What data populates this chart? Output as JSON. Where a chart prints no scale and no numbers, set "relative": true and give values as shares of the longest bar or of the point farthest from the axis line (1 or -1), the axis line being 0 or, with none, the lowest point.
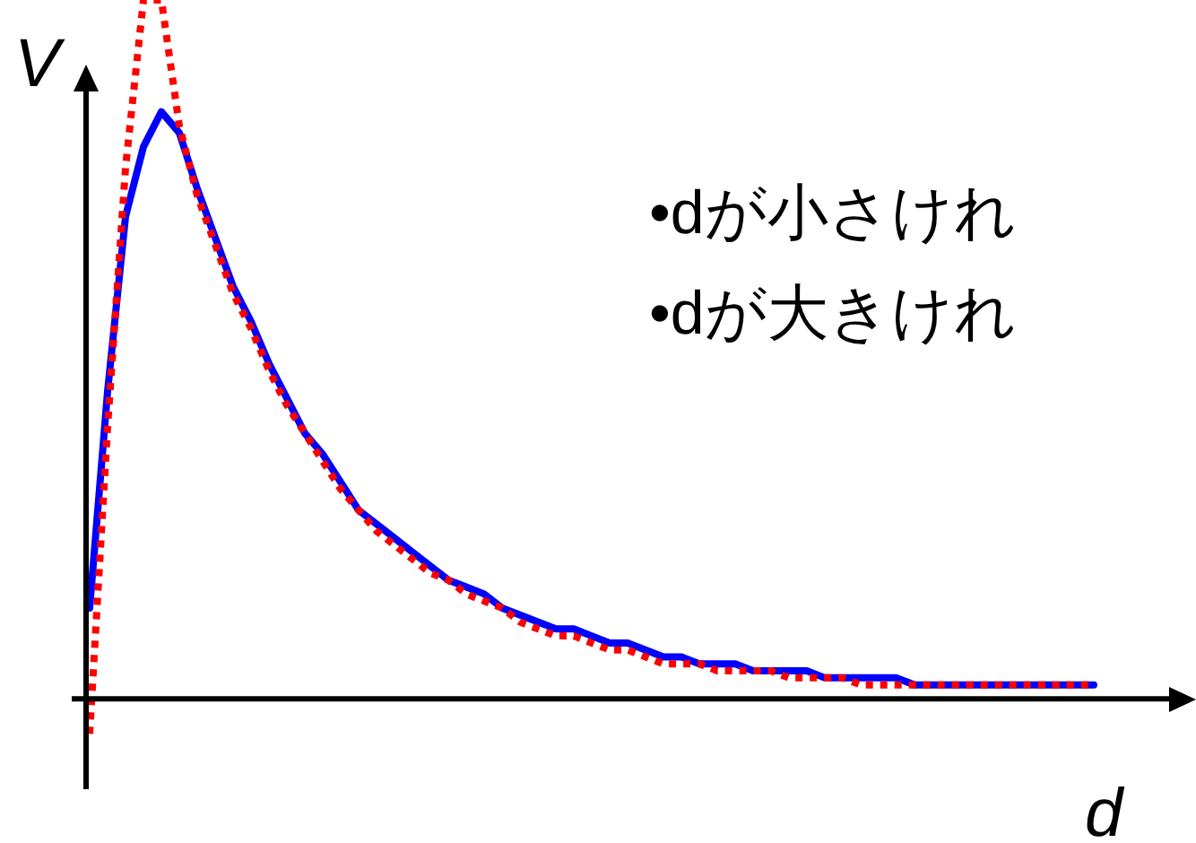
{
  "chart_data": {
    "type": "line",
    "relative": true,
    "xlabel": "d",
    "ylabel": "V",
    "legend": false,
    "marker": "none",
    "annotations": [
      "•dが小さけれ",
      "•dが大きけれ"
    ],
    "categories": [
      null,
      null,
      null,
      null,
      null,
      null,
      null,
      null,
      null,
      null,
      null,
      null,
      null,
      null,
      null,
      null,
      null,
      null,
      null,
      null,
      null,
      null,
      null,
      null,
      null,
      null,
      null,
      null,
      null,
      null,
      null,
      null,
      null,
      null,
      null,
      null,
      null,
      null,
      null,
      null,
      null,
      null,
      null,
      null,
      null,
      null,
      null,
      null,
      null,
      null,
      null,
      null,
      null,
      null,
      null,
      null,
      null
    ],
    "series": [
      {
        "color": "#0000ff",
        "line_style": "solid",
        "values": [
          0.13,
          0.44,
          0.69,
          0.79,
          0.84,
          0.81,
          0.73,
          0.66,
          0.59,
          0.54,
          0.48,
          0.43,
          0.38,
          0.35,
          0.31,
          0.27,
          0.25,
          0.23,
          0.21,
          0.19,
          0.17,
          0.16,
          0.15,
          0.13,
          0.12,
          0.11,
          0.1,
          0.1,
          0.09,
          0.08,
          0.08,
          0.07,
          0.06,
          0.06,
          0.05,
          0.05,
          0.05,
          0.04,
          0.04,
          0.04,
          0.04,
          0.03,
          0.03,
          0.03,
          0.03,
          0.03,
          0.02,
          0.02,
          0.02,
          0.02,
          0.02,
          0.02,
          0.02,
          0.02,
          0.02,
          0.02,
          0.02
        ]
      },
      {
        "color": "#ff0000",
        "line_style": "dotted",
        "values": [
          -0.05,
          0.39,
          0.76,
          1,
          1,
          0.82,
          0.72,
          0.65,
          0.58,
          0.53,
          0.47,
          0.42,
          0.38,
          0.34,
          0.3,
          0.27,
          0.24,
          0.22,
          0.2,
          0.18,
          0.17,
          0.15,
          0.14,
          0.13,
          0.11,
          0.1,
          0.09,
          0.09,
          0.08,
          0.07,
          0.07,
          0.06,
          0.05,
          0.05,
          0.05,
          0.04,
          0.04,
          0.04,
          0.04,
          0.03,
          0.03,
          0.03,
          0.03,
          0.02,
          0.02,
          0.02,
          0.02,
          0.02,
          0.02,
          0.02,
          0.02,
          0.02,
          0.02,
          0.02,
          0.02,
          0.02,
          0.02
        ]
      }
    ]
  }
}
